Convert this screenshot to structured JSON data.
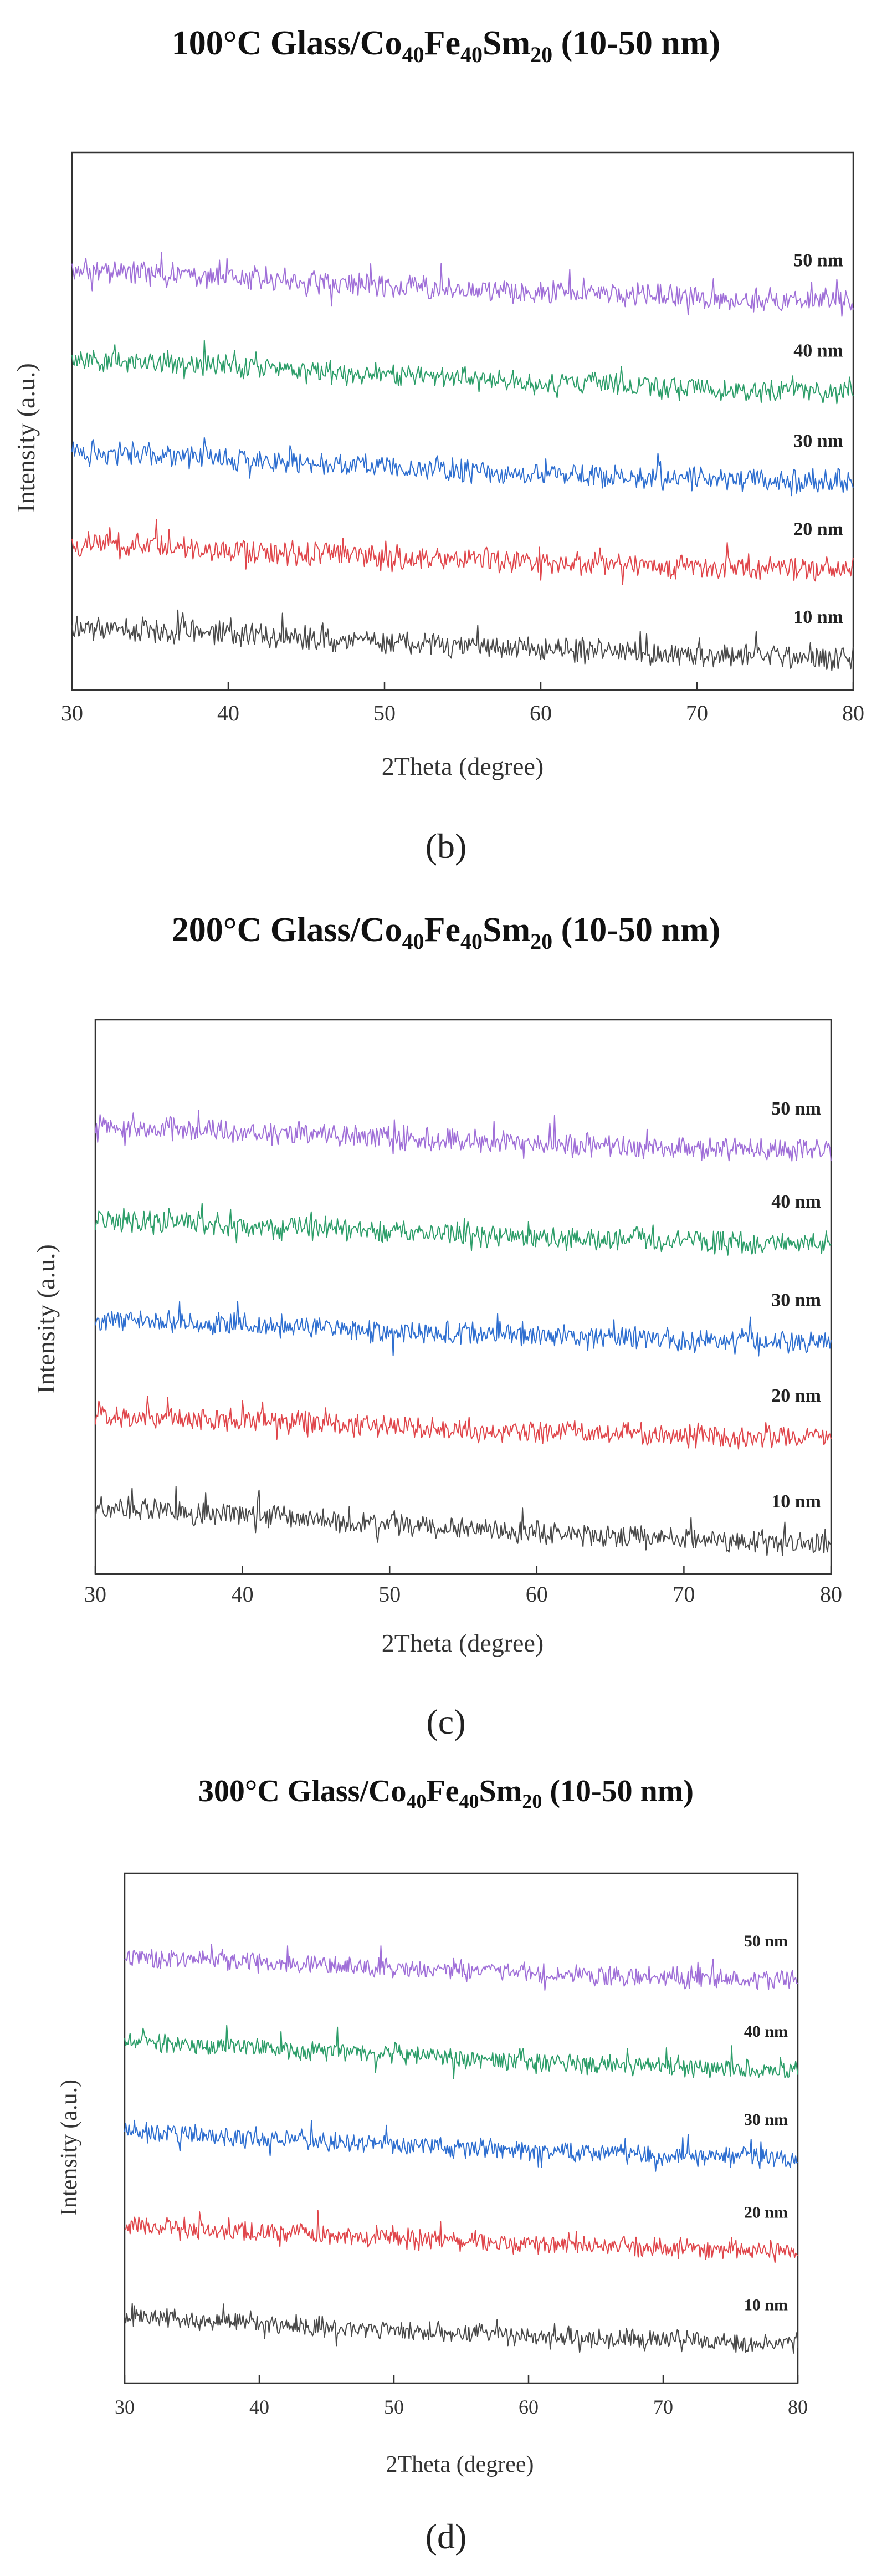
{
  "colors": {
    "10nm": "#4a4a4a",
    "20nm": "#e0474c",
    "30nm": "#2f6fd0",
    "40nm": "#2e9e6a",
    "50nm": "#a070d8"
  },
  "chart_data": [
    {
      "type": "line",
      "panel_label": "(b)",
      "title": {
        "prefix": "100°C Glass/Co",
        "s1": "40",
        "m1": "Fe",
        "s2": "40",
        "m2": "Sm",
        "s3": "20",
        "suffix": " (10-50 nm)"
      },
      "xlabel": "2Theta (degree)",
      "ylabel": "Intensity (a.u.)",
      "xlim": [
        30,
        80
      ],
      "ylim": [
        0,
        11
      ],
      "xticks": [
        30,
        40,
        50,
        60,
        70,
        80
      ],
      "noise": 0.32,
      "series": [
        {
          "name": "10 nm",
          "color_key": "10nm",
          "start": 1.3,
          "end": 0.65
        },
        {
          "name": "20 nm",
          "color_key": "20nm",
          "start": 3.0,
          "end": 2.45
        },
        {
          "name": "30 nm",
          "color_key": "30nm",
          "start": 4.9,
          "end": 4.25
        },
        {
          "name": "40 nm",
          "color_key": "40nm",
          "start": 6.8,
          "end": 6.1
        },
        {
          "name": "50 nm",
          "color_key": "50nm",
          "start": 8.6,
          "end": 7.95
        }
      ]
    },
    {
      "type": "line",
      "panel_label": "(c)",
      "title": {
        "prefix": "200°C Glass/Co",
        "s1": "40",
        "m1": "Fe",
        "s2": "40",
        "m2": "Sm",
        "s3": "20",
        "suffix": " (10-50 nm)"
      },
      "xlabel": "2Theta (degree)",
      "ylabel": "Intensity (a.u.)",
      "xlim": [
        30,
        80
      ],
      "ylim": [
        0,
        11
      ],
      "xticks": [
        30,
        40,
        50,
        60,
        70,
        80
      ],
      "noise": 0.3,
      "series": [
        {
          "name": "10 nm",
          "color_key": "10nm",
          "start": 1.35,
          "end": 0.6
        },
        {
          "name": "20 nm",
          "color_key": "20nm",
          "start": 3.15,
          "end": 2.7
        },
        {
          "name": "30 nm",
          "color_key": "30nm",
          "start": 5.05,
          "end": 4.6
        },
        {
          "name": "40 nm",
          "color_key": "40nm",
          "start": 7.05,
          "end": 6.55
        },
        {
          "name": "50 nm",
          "color_key": "50nm",
          "start": 8.9,
          "end": 8.4
        }
      ]
    },
    {
      "type": "line",
      "panel_label": "(d)",
      "title": {
        "prefix": "300°C Glass/Co",
        "s1": "40",
        "m1": "Fe",
        "s2": "40",
        "m2": "Sm",
        "s3": "20",
        "suffix": " (10-50 nm)"
      },
      "xlabel": "2Theta (degree)",
      "ylabel": "Intensity (a.u.)",
      "xlim": [
        30,
        80
      ],
      "ylim": [
        0,
        11
      ],
      "xticks": [
        30,
        40,
        50,
        60,
        70,
        80
      ],
      "noise": 0.28,
      "series": [
        {
          "name": "10 nm",
          "color_key": "10nm",
          "start": 1.45,
          "end": 0.85
        },
        {
          "name": "20 nm",
          "color_key": "20nm",
          "start": 3.4,
          "end": 2.85
        },
        {
          "name": "30 nm",
          "color_key": "30nm",
          "start": 5.45,
          "end": 4.85
        },
        {
          "name": "40 nm",
          "color_key": "40nm",
          "start": 7.4,
          "end": 6.75
        },
        {
          "name": "50 nm",
          "color_key": "50nm",
          "start": 9.2,
          "end": 8.7
        }
      ]
    }
  ]
}
